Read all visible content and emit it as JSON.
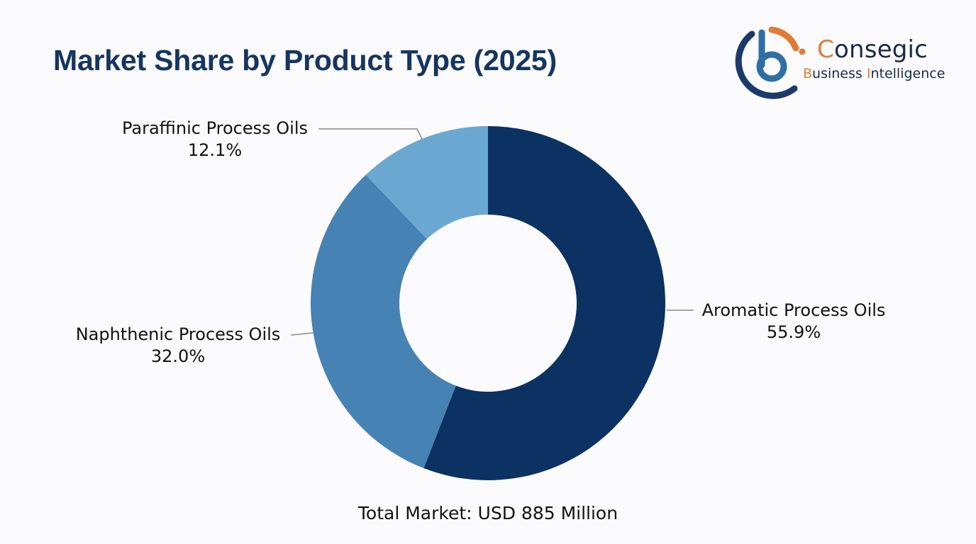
{
  "header": {
    "title": "Market Share by Product Type (2025)"
  },
  "logo": {
    "brand_first_letter": "C",
    "brand_rest": "onsegic",
    "sub_b": "B",
    "sub_usiness": "usiness ",
    "sub_i": "I",
    "sub_ntelligence": "ntelligence",
    "colors": {
      "dark_navy": "#1b3a6b",
      "mid_blue": "#2e6fa6",
      "orange": "#e07a35"
    }
  },
  "footer": {
    "total_text": "Total Market: USD 885 Million"
  },
  "chart_data": {
    "type": "pie",
    "subtype": "donut",
    "title": "Market Share by Product Type (2025)",
    "categories": [
      "Aromatic Process Oils",
      "Naphthenic Process Oils",
      "Paraffinic Process Oils"
    ],
    "values": [
      55.9,
      32.0,
      12.1
    ],
    "value_labels": [
      "55.9%",
      "32.0%",
      "12.1%"
    ],
    "units": "%",
    "colors": [
      "#0b3262",
      "#4682b4",
      "#6aa8d2"
    ],
    "start_angle": "12 o'clock",
    "direction": "clockwise",
    "inner_radius_ratio": 0.5,
    "annotation": "Total Market: USD 885 Million",
    "legend": "none (direct labels with leader lines)"
  },
  "labels": {
    "aromatic": {
      "name": "Aromatic Process Oils",
      "pct": "55.9%"
    },
    "naphthenic": {
      "name": "Naphthenic Process Oils",
      "pct": "32.0%"
    },
    "paraffinic": {
      "name": "Paraffinic Process Oils",
      "pct": "12.1%"
    }
  }
}
